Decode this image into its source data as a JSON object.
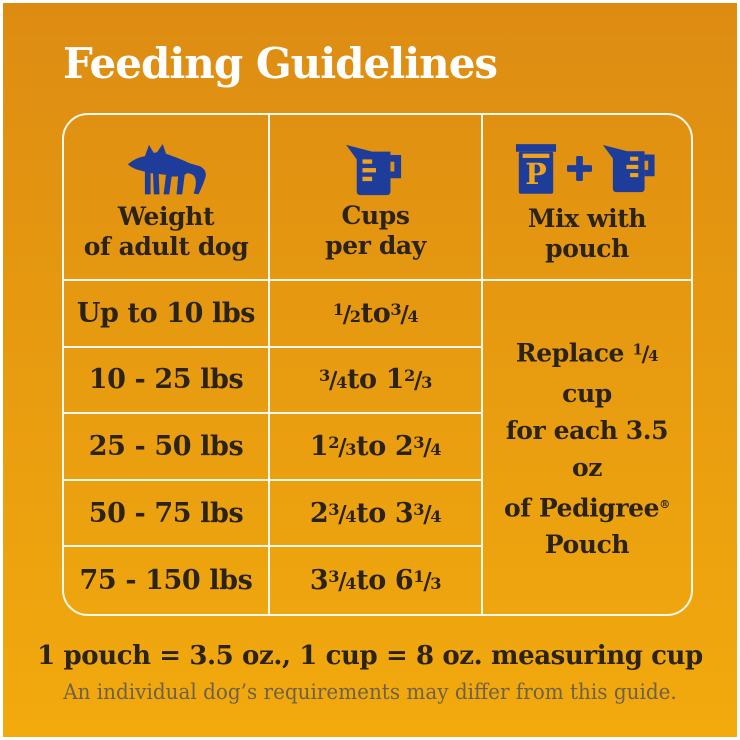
{
  "title": "Feeding Guidelines",
  "table": {
    "header": {
      "columns": [
        {
          "icon": "dog-icon",
          "label_lines": [
            "Weight",
            "of adult dog"
          ]
        },
        {
          "icon": "measuring-cup-icon",
          "label_lines": [
            "Cups",
            "per day"
          ]
        },
        {
          "icons": [
            "pouch-icon",
            "plus-icon",
            "measuring-cup-icon"
          ],
          "label_lines": [
            "Mix with",
            "pouch"
          ]
        }
      ]
    },
    "rows": [
      {
        "weight": "Up to 10 lbs",
        "cups": "1/2 to 3/4"
      },
      {
        "weight": "10 - 25 lbs",
        "cups": "3/4 to 1 2/3"
      },
      {
        "weight": "25 - 50 lbs",
        "cups": "1 2/3 to 2 3/4"
      },
      {
        "weight": "50 - 75 lbs",
        "cups": "2 3/4 to 3 3/4"
      },
      {
        "weight": "75 - 150 lbs",
        "cups": "3 3/4 to 6 1/3"
      }
    ],
    "mix_note_lines": [
      "Replace 1/4 cup",
      "for each 3.5 oz",
      "of Pedigree®",
      "Pouch"
    ]
  },
  "footer": {
    "equivalence": "1 pouch = 3.5 oz., 1 cup = 8 oz. measuring cup",
    "disclaimer": "An individual dog’s requirements may differ from this guide."
  },
  "pouch_letter": "P",
  "colors": {
    "background_top": "#dd8c12",
    "background_middle": "#e89c10",
    "background_bottom": "#f2aa0d",
    "accent_blue": "#1e3d9b",
    "icon_orange": "#f0a41d",
    "text_dark": "#2b2318",
    "table_line": "#fbf8ef",
    "title_color": "#ffffff",
    "disclaimer_color": "#6f6148"
  }
}
